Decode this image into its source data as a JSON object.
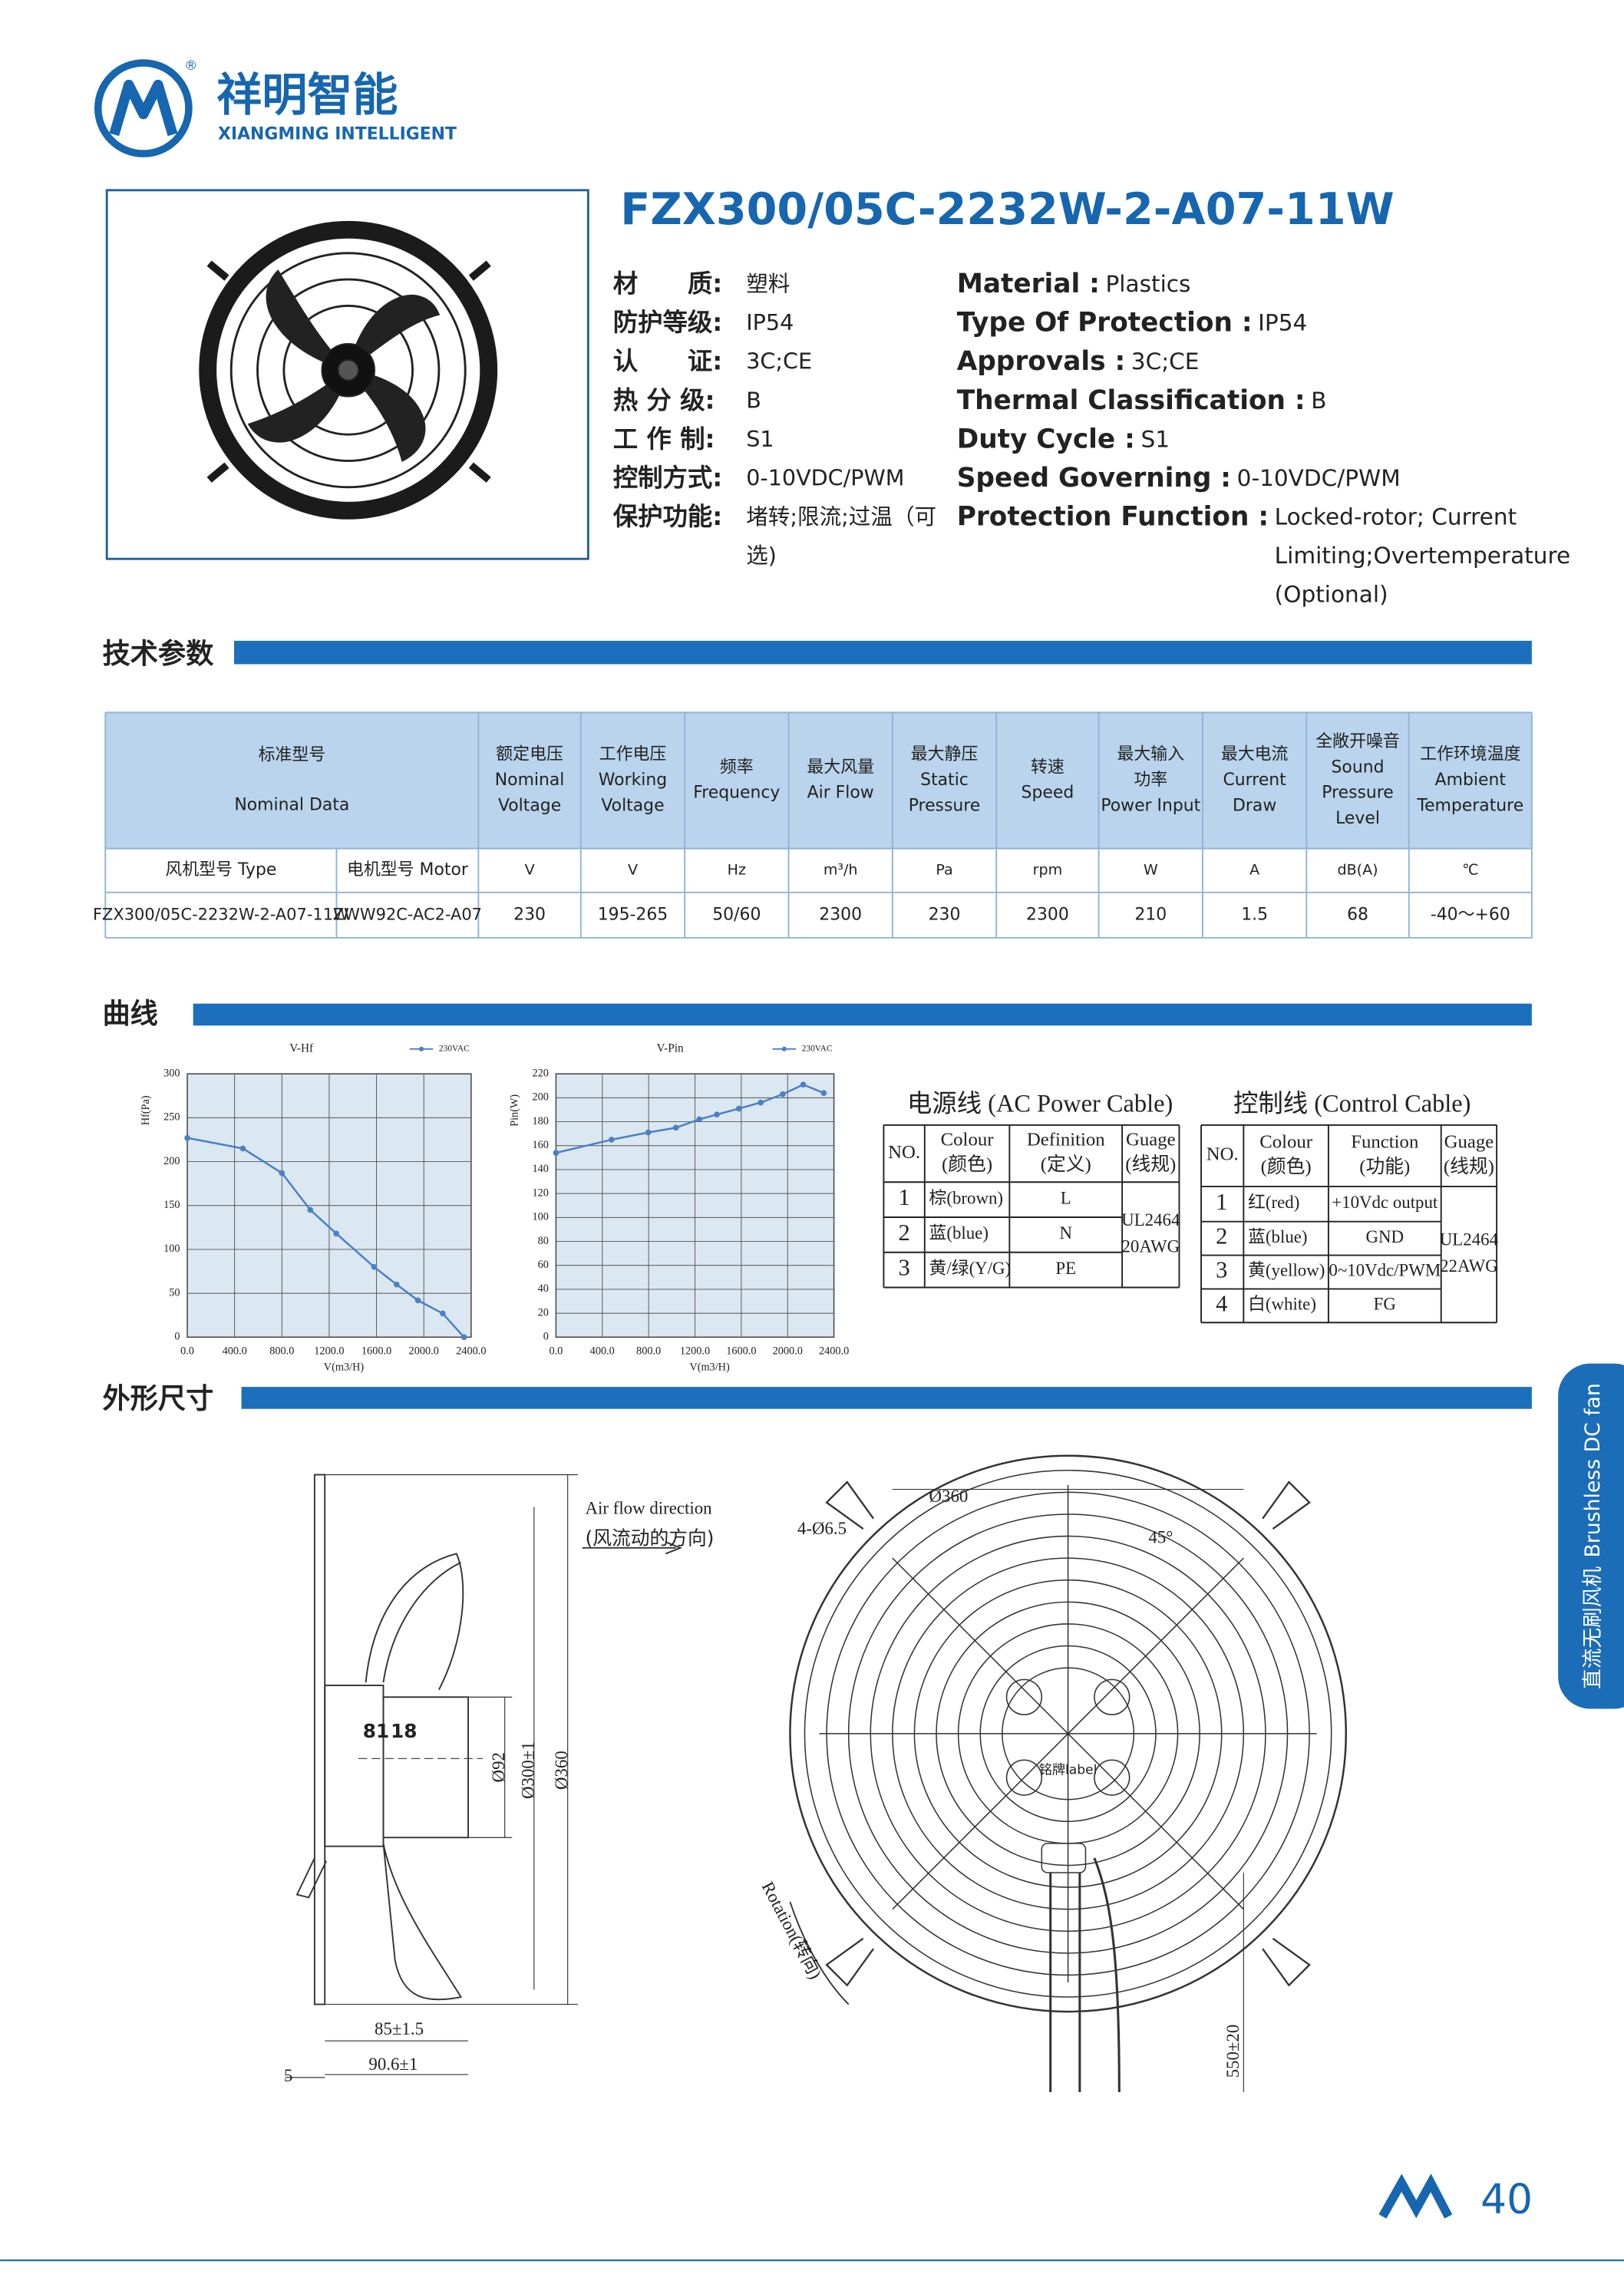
{
  "header": {
    "brand_cn": "祥明智能",
    "brand_en": "XIANGMING INTELLIGENT",
    "registered": "®"
  },
  "product": {
    "model": "FZX300/05C-2232W-2-A07-11W",
    "specs_cn": [
      {
        "label": "材　　质:",
        "value": [
          "塑料"
        ]
      },
      {
        "label": "防护等级:",
        "value": [
          "IP54"
        ]
      },
      {
        "label": "认　　证:",
        "value": [
          "3C;CE"
        ]
      },
      {
        "label": "热 分 级:",
        "value": [
          "B"
        ]
      },
      {
        "label": "工 作 制:",
        "value": [
          "S1"
        ]
      },
      {
        "label": "控制方式:",
        "value": [
          "0-10VDC/PWM"
        ]
      },
      {
        "label": "保护功能:",
        "value": [
          "堵转;限流;过温（可",
          "选)"
        ]
      }
    ],
    "specs_en": [
      {
        "label": "Material :",
        "value": [
          "Plastics"
        ]
      },
      {
        "label": "Type Of Protection :",
        "value": [
          "IP54"
        ]
      },
      {
        "label": "Approvals :",
        "value": [
          "3C;CE"
        ]
      },
      {
        "label": "Thermal Classification :",
        "value": [
          "B"
        ]
      },
      {
        "label": "Duty Cycle :",
        "value": [
          "S1"
        ]
      },
      {
        "label": "Speed Governing :",
        "value": [
          "0-10VDC/PWM"
        ]
      },
      {
        "label": "Protection Function :",
        "value": [
          "Locked-rotor; Current",
          "Limiting;Overtemperature",
          "(Optional)"
        ]
      }
    ]
  },
  "sections": {
    "technical": "技术参数",
    "curves": "曲线",
    "dimensions": "外形尺寸"
  },
  "spec_table": {
    "header": [
      [
        "标准型号",
        "Nominal Data"
      ],
      [
        "额定电压",
        "Nominal",
        "Voltage"
      ],
      [
        "工作电压",
        "Working",
        "Voltage"
      ],
      [
        "频率",
        "Frequency"
      ],
      [
        "最大风量",
        "Air Flow"
      ],
      [
        "最大静压",
        "Static",
        "Pressure"
      ],
      [
        "转速",
        "Speed"
      ],
      [
        "最大输入",
        "功率",
        "Power Input"
      ],
      [
        "最大电流",
        "Current",
        "Draw"
      ],
      [
        "全敞开噪音",
        "Sound",
        "Pressure",
        "Level"
      ],
      [
        "工作环境温度",
        "Ambient",
        "Temperature"
      ]
    ],
    "units": [
      "风机型号 Type",
      "电机型号 Motor",
      "V",
      "V",
      "Hz",
      "m³/h",
      "Pa",
      "rpm",
      "W",
      "A",
      "dB(A)",
      "℃"
    ],
    "rows": [
      [
        "FZX300/05C-2232W-2-A07-11W",
        "ZWW92C-AC2-A07",
        "230",
        "195-265",
        "50/60",
        "2300",
        "230",
        "2300",
        "210",
        "1.5",
        "68",
        "-40～+60"
      ]
    ]
  },
  "curves": [
    {
      "type": "line",
      "title": "V-Hf",
      "x_label": "V(m3/H)",
      "y_label": "Hf(Pa)",
      "x": [
        0,
        470,
        800,
        1040,
        1260,
        1580,
        1770,
        1950,
        2160,
        2340
      ],
      "series": [
        {
          "name": "230VAC",
          "color": "#4a80c4",
          "values": [
            227,
            215,
            187,
            145,
            118,
            80,
            60,
            42,
            27,
            0
          ]
        }
      ],
      "xlim": [
        0,
        2400
      ],
      "xticks": [
        {
          "value": 0,
          "label": "0.0"
        },
        {
          "value": 400,
          "label": "400.0"
        },
        {
          "value": 800,
          "label": "800.0"
        },
        {
          "value": 1200,
          "label": "1200.0"
        },
        {
          "value": 1600,
          "label": "1600.0"
        },
        {
          "value": 2000,
          "label": "2000.0"
        },
        {
          "value": 2400,
          "label": "2400.0"
        }
      ],
      "ylim": [
        0,
        300
      ],
      "yticks": [
        0,
        50,
        100,
        150,
        200,
        250,
        300
      ],
      "grid": true
    },
    {
      "type": "line",
      "title": "V-Pin",
      "x_label": "V(m3/H)",
      "y_label": "Pin(W)",
      "x": [
        0,
        480,
        796,
        1036,
        1238,
        1389,
        1579,
        1768,
        1958,
        2135,
        2312
      ],
      "series": [
        {
          "name": "230VAC",
          "color": "#4a80c4",
          "values": [
            154,
            165,
            171,
            175,
            182,
            186,
            191,
            196,
            203,
            211,
            204
          ]
        }
      ],
      "xlim": [
        0,
        2400
      ],
      "xticks": [
        {
          "value": 0,
          "label": "0.0"
        },
        {
          "value": 400,
          "label": "400.0"
        },
        {
          "value": 800,
          "label": "800.0"
        },
        {
          "value": 1200,
          "label": "1200.0"
        },
        {
          "value": 1600,
          "label": "1600.0"
        },
        {
          "value": 2000,
          "label": "2000.0"
        },
        {
          "value": 2400,
          "label": "2400.0"
        }
      ],
      "ylim": [
        0,
        220
      ],
      "yticks": [
        0,
        20,
        40,
        60,
        80,
        100,
        120,
        140,
        160,
        180,
        200,
        220
      ],
      "grid": true
    }
  ],
  "cables": [
    {
      "title": "电源线 (AC Power Cable)",
      "header": [
        [
          "NO."
        ],
        [
          "Colour",
          "(颜色)"
        ],
        [
          "Definition",
          "(定义)"
        ],
        [
          "Guage",
          "(线规)"
        ]
      ],
      "rows": [
        [
          "1",
          "棕(brown)",
          "L"
        ],
        [
          "2",
          "蓝(blue)",
          "N"
        ],
        [
          "3",
          "黄/绿(Y/G)",
          "PE"
        ]
      ],
      "gauge": [
        "UL2464",
        "20AWG"
      ]
    },
    {
      "title": "控制线 (Control Cable)",
      "header": [
        [
          "NO."
        ],
        [
          "Colour",
          "(颜色)"
        ],
        [
          "Function",
          "(功能)"
        ],
        [
          "Guage",
          "(线规)"
        ]
      ],
      "rows": [
        [
          "1",
          "红(red)",
          "+10Vdc output"
        ],
        [
          "2",
          "蓝(blue)",
          "GND"
        ],
        [
          "3",
          "黄(yellow)",
          "0~10Vdc/PWM"
        ],
        [
          "4",
          "白(white)",
          "FG"
        ]
      ],
      "gauge": [
        "UL2464",
        "22AWG"
      ]
    }
  ],
  "drawing": {
    "airflow_en": "Air flow direction",
    "airflow_cn": "(风流动的方向)",
    "d81": "81",
    "d18": "18",
    "d92": "Ø92",
    "d300": "Ø300±1",
    "d360": "Ø360",
    "d85": "85±1.5",
    "d90": "90.6±1",
    "d5": "5",
    "front_d360": "Ø360",
    "holes": "4-Ø6.5",
    "angle": "45°",
    "rotation": "Rotation(转向)",
    "cable_len": "550±20",
    "nameplate": "铭牌label"
  },
  "side_tab": [
    "直流无刷风机",
    "Brushless DC fan"
  ],
  "footer": {
    "page": "40"
  }
}
